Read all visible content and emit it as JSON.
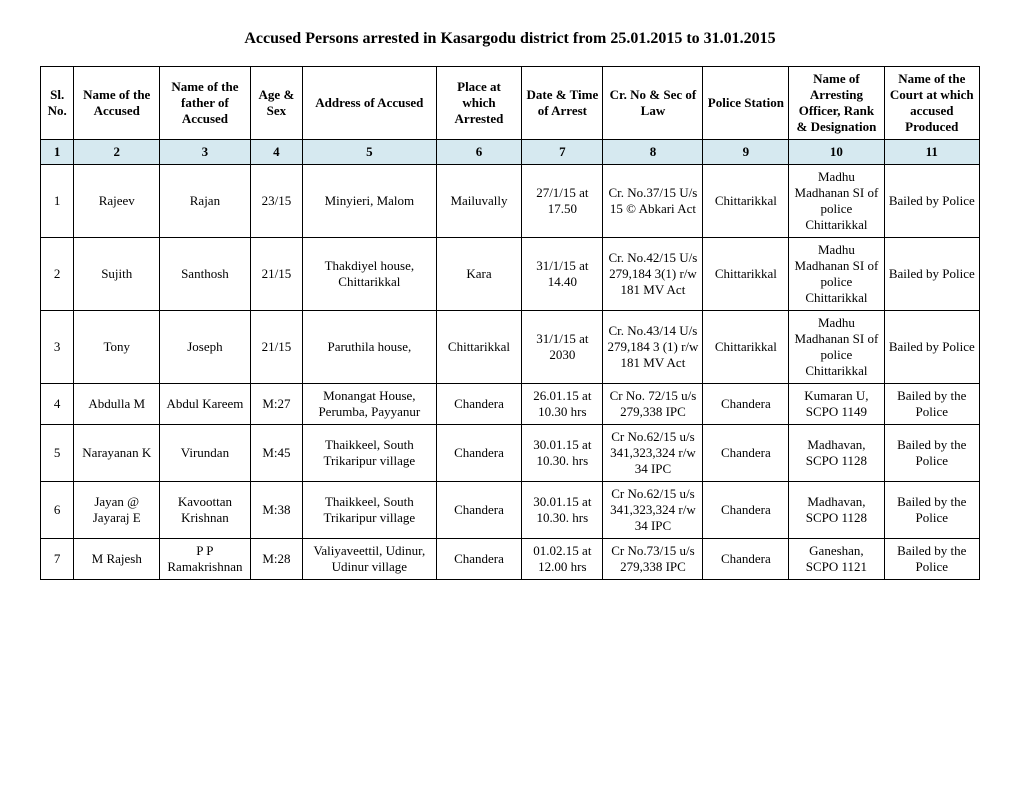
{
  "title": "Accused Persons arrested in  Kasargodu  district from  25.01.2015 to 31.01.2015",
  "headers": {
    "sl": "Sl. No.",
    "name": "Name of the Accused",
    "father": "Name of the father of Accused",
    "age": "Age & Sex",
    "addr": "Address of Accused",
    "place": "Place at which Arrested",
    "date": "Date & Time of Arrest",
    "cr": "Cr. No & Sec of Law",
    "ps": "Police Station",
    "officer": "Name of Arresting Officer, Rank & Designation",
    "court": "Name of the Court at which accused Produced"
  },
  "colnums": [
    "1",
    "2",
    "3",
    "4",
    "5",
    "6",
    "7",
    "8",
    "9",
    "10",
    "11"
  ],
  "rows": [
    {
      "sl": "1",
      "name": "Rajeev",
      "father": "Rajan",
      "age": "23/15",
      "addr": "Minyieri, Malom",
      "place": "Mailuvally",
      "date": "27/1/15 at 17.50",
      "cr": "Cr. No.37/15 U/s 15 © Abkari Act",
      "ps": "Chittarikkal",
      "officer": "Madhu Madhanan SI of police Chittarikkal",
      "court": "Bailed by Police"
    },
    {
      "sl": "2",
      "name": "Sujith",
      "father": "Santhosh",
      "age": "21/15",
      "addr": "Thakdiyel house, Chittarikkal",
      "place": "Kara",
      "date": "31/1/15 at 14.40",
      "cr": "Cr. No.42/15 U/s 279,184 3(1) r/w 181 MV Act",
      "ps": "Chittarikkal",
      "officer": "Madhu Madhanan SI of police Chittarikkal",
      "court": "Bailed by Police"
    },
    {
      "sl": "3",
      "name": "Tony",
      "father": "Joseph",
      "age": "21/15",
      "addr": "Paruthila house,",
      "place": "Chittarikkal",
      "date": "31/1/15 at 2030",
      "cr": "Cr. No.43/14 U/s 279,184 3 (1) r/w 181 MV Act",
      "ps": "Chittarikkal",
      "officer": "Madhu Madhanan SI of police Chittarikkal",
      "court": "Bailed by Police"
    },
    {
      "sl": "4",
      "name": "Abdulla M",
      "father": "Abdul Kareem",
      "age": "M:27",
      "addr": "Monangat House, Perumba, Payyanur",
      "place": "Chandera",
      "date": "26.01.15 at 10.30 hrs",
      "cr": "Cr No. 72/15 u/s 279,338 IPC",
      "ps": "Chandera",
      "officer": "Kumaran U, SCPO 1149",
      "court": "Bailed by the Police"
    },
    {
      "sl": "5",
      "name": "Narayanan K",
      "father": "Virundan",
      "age": "M:45",
      "addr": "Thaikkeel, South Trikaripur village",
      "place": "Chandera",
      "date": "30.01.15 at 10.30. hrs",
      "cr": "Cr No.62/15 u/s 341,323,324 r/w 34 IPC",
      "ps": "Chandera",
      "officer": "Madhavan, SCPO 1128",
      "court": "Bailed by the Police"
    },
    {
      "sl": "6",
      "name": "Jayan @ Jayaraj E",
      "father": "Kavoottan Krishnan",
      "age": "M:38",
      "addr": "Thaikkeel, South Trikaripur village",
      "place": "Chandera",
      "date": "30.01.15 at 10.30. hrs",
      "cr": "Cr No.62/15 u/s 341,323,324 r/w 34 IPC",
      "ps": "Chandera",
      "officer": "Madhavan, SCPO 1128",
      "court": "Bailed by the Police"
    },
    {
      "sl": "7",
      "name": "M Rajesh",
      "father": "P P Ramakrishnan",
      "age": "M:28",
      "addr": "Valiyaveettil, Udinur, Udinur village",
      "place": "Chandera",
      "date": "01.02.15 at 12.00 hrs",
      "cr": "Cr No.73/15 u/s 279,338 IPC",
      "ps": "Chandera",
      "officer": "Ganeshan, SCPO 1121",
      "court": "Bailed by the Police"
    }
  ],
  "styling": {
    "background_color": "#ffffff",
    "text_color": "#000000",
    "border_color": "#000000",
    "numrow_bg": "#d6e9f0",
    "font_family": "Times New Roman",
    "title_fontsize": 16,
    "cell_fontsize": 13
  }
}
